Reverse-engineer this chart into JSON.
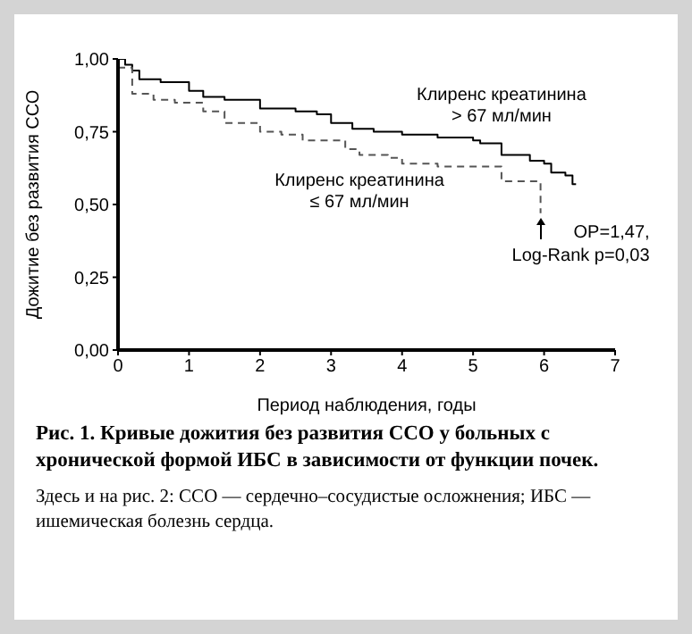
{
  "chart_data": {
    "type": "step",
    "title": "Рис. 1. Кривые дожития без развития ССО у больных с хронической формой ИБС в зависимости от функции почек.",
    "xlabel": "Период наблюдения, годы",
    "ylabel": "Дожитие без развития ССО",
    "xlim": [
      0,
      7
    ],
    "ylim": [
      0,
      1
    ],
    "xticks": [
      0,
      1,
      2,
      3,
      4,
      5,
      6,
      7
    ],
    "yticks": [
      {
        "value": 0,
        "label": "0,00"
      },
      {
        "value": 0.25,
        "label": "0,25"
      },
      {
        "value": 0.5,
        "label": "0,50"
      },
      {
        "value": 0.75,
        "label": "0,75"
      },
      {
        "value": 1,
        "label": "1,00"
      }
    ],
    "marker": "none",
    "series": [
      {
        "name": "Клиренс креатинина\n> 67 мл/мин",
        "color": "#000000",
        "line_style": "solid",
        "x": [
          0,
          0.1,
          0.2,
          0.3,
          0.6,
          1.0,
          1.2,
          1.5,
          2.0,
          2.2,
          2.5,
          2.8,
          3.0,
          3.3,
          3.6,
          4.0,
          4.5,
          5.0,
          5.1,
          5.4,
          5.8,
          6.0,
          6.1,
          6.3,
          6.4,
          6.45
        ],
        "values": [
          1.0,
          0.98,
          0.96,
          0.93,
          0.92,
          0.89,
          0.87,
          0.86,
          0.83,
          0.83,
          0.82,
          0.81,
          0.78,
          0.76,
          0.75,
          0.74,
          0.73,
          0.72,
          0.71,
          0.67,
          0.65,
          0.64,
          0.61,
          0.6,
          0.57,
          0.57
        ]
      },
      {
        "name": "Клиренс креатинина\n≤ 67 мл/мин",
        "color": "#555555",
        "line_style": "dashed",
        "x": [
          0,
          0.2,
          0.5,
          0.8,
          1.0,
          1.2,
          1.5,
          2.0,
          2.3,
          2.6,
          3.0,
          3.2,
          3.4,
          3.8,
          4.0,
          4.5,
          5.0,
          5.3,
          5.4,
          5.9,
          5.95
        ],
        "values": [
          0.97,
          0.88,
          0.86,
          0.85,
          0.85,
          0.82,
          0.78,
          0.75,
          0.74,
          0.72,
          0.72,
          0.69,
          0.67,
          0.66,
          0.64,
          0.63,
          0.63,
          0.63,
          0.58,
          0.58,
          0.47
        ]
      }
    ],
    "annotations": [
      {
        "text": "ОР=1,47,\nLog-Rank p=0,03",
        "x": 5.95,
        "y": 0.47
      },
      "Здесь и на рис. 2: ССО — сердечно–сосудистые осложнения; ИБС — ишемическая болезнь сердца."
    ]
  }
}
